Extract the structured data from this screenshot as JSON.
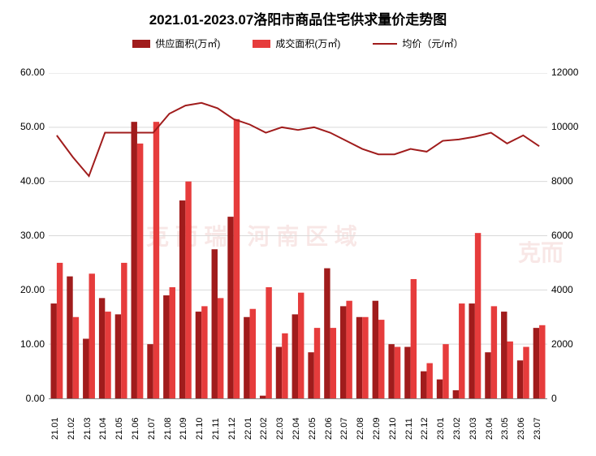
{
  "chart": {
    "type": "bar+line",
    "title": "2021.01-2023.07洛阳市商品住宅供求量价走势图",
    "title_fontsize": 17,
    "title_fontweight": "bold",
    "background_color": "#ffffff",
    "grid_color": "#d9d9d9",
    "legend": {
      "supply": {
        "label": "供应面积(万㎡)",
        "color": "#a01c1c",
        "type": "bar"
      },
      "deal": {
        "label": "成交面积(万㎡)",
        "color": "#e63c3c",
        "type": "bar"
      },
      "price": {
        "label": "均价（元/㎡）",
        "color": "#a01c1c",
        "type": "line"
      }
    },
    "left_axis": {
      "min": 0,
      "max": 60,
      "step": 10,
      "decimals": 2,
      "ticks": [
        "0.00",
        "10.00",
        "20.00",
        "30.00",
        "40.00",
        "50.00",
        "60.00"
      ],
      "label_fontsize": 12
    },
    "right_axis": {
      "min": 0,
      "max": 12000,
      "step": 2000,
      "ticks": [
        "0",
        "2000",
        "4000",
        "6000",
        "8000",
        "10000",
        "12000"
      ],
      "label_fontsize": 12
    },
    "categories": [
      "21.01",
      "21.02",
      "21.03",
      "21.04",
      "21.05",
      "21.06",
      "21.07",
      "21.08",
      "21.09",
      "21.10",
      "21.11",
      "21.12",
      "22.01",
      "22.02",
      "22.03",
      "22.04",
      "22.05",
      "22.06",
      "22.07",
      "22.08",
      "22.09",
      "22.10",
      "22.11",
      "22.12",
      "23.01",
      "23.02",
      "23.03",
      "23.04",
      "23.05",
      "23.06",
      "23.07"
    ],
    "supply_values": [
      17.5,
      22.5,
      11.0,
      18.5,
      15.5,
      51.0,
      10.0,
      19.0,
      36.5,
      16.0,
      27.5,
      33.5,
      15.0,
      0.5,
      9.5,
      15.5,
      8.5,
      24.0,
      17.0,
      15.0,
      18.0,
      10.0,
      9.5,
      5.0,
      3.5,
      1.5,
      17.5,
      8.5,
      16.0,
      7.0,
      13.0
    ],
    "deal_values": [
      25.0,
      15.0,
      23.0,
      16.0,
      25.0,
      47.0,
      51.0,
      20.5,
      40.0,
      17.0,
      18.5,
      51.5,
      16.5,
      20.5,
      12.0,
      19.5,
      13.0,
      13.0,
      18.0,
      15.0,
      14.5,
      9.5,
      22.0,
      6.5,
      10.0,
      17.5,
      30.5,
      17.0,
      10.5,
      9.5,
      13.5
    ],
    "price_values": [
      9700,
      8900,
      8200,
      9800,
      9800,
      9800,
      9800,
      10500,
      10800,
      10900,
      10700,
      10300,
      10100,
      9800,
      10000,
      9900,
      10000,
      9800,
      9500,
      9200,
      9000,
      9000,
      9200,
      9100,
      9500,
      9550,
      9650,
      9800,
      9400,
      9700,
      9300
    ],
    "bar_group_width_ratio": 0.75,
    "line_width": 2,
    "x_label_fontsize": 11,
    "watermark_text_left": "克 而 瑞 · 河 南 区 域",
    "watermark_text_right": "克而"
  }
}
